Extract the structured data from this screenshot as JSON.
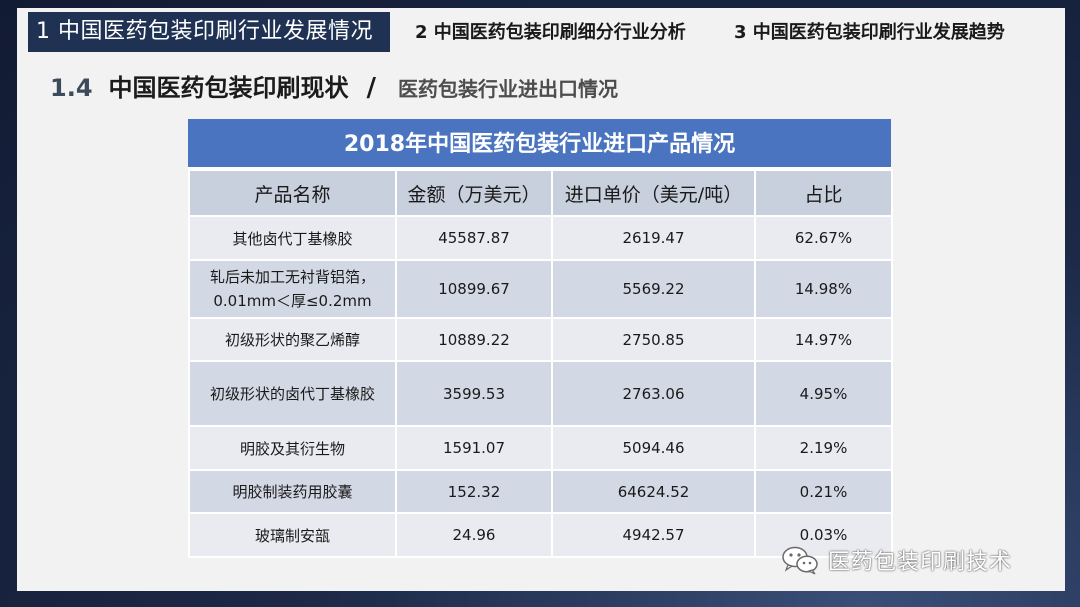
{
  "nav": {
    "tab1": "1 中国医药包装印刷行业发展情况",
    "tab2": "2 中国医药包装印刷细分行业分析",
    "tab3": "3 中国医药包装印刷行业发展趋势"
  },
  "section": {
    "number": "1.4",
    "title": "中国医药包装印刷现状",
    "separator": "/",
    "subtitle": "医药包装行业进出口情况"
  },
  "table": {
    "caption": "2018年中国医药包装行业进口产品情况",
    "headers": [
      "产品名称",
      "金额（万美元）",
      "进口单价（美元/吨）",
      "占比"
    ],
    "rows": [
      {
        "name": "其他卤代丁基橡胶",
        "amount": "45587.87",
        "price": "2619.47",
        "share": "62.67%"
      },
      {
        "name_line1": "轧后未加工无衬背铝箔，",
        "name_line2": "0.01mm＜厚≤0.2mm",
        "amount": "10899.67",
        "price": "5569.22",
        "share": "14.98%"
      },
      {
        "name": "初级形状的聚乙烯醇",
        "amount": "10889.22",
        "price": "2750.85",
        "share": "14.97%"
      },
      {
        "name": "初级形状的卤代丁基橡胶",
        "amount": "3599.53",
        "price": "2763.06",
        "share": "4.95%"
      },
      {
        "name": "明胶及其衍生物",
        "amount": "1591.07",
        "price": "5094.46",
        "share": "2.19%"
      },
      {
        "name": "明胶制装药用胶囊",
        "amount": "152.32",
        "price": "64624.52",
        "share": "0.21%"
      },
      {
        "name": "玻璃制安瓿",
        "amount": "24.96",
        "price": "4942.57",
        "share": "0.03%"
      }
    ]
  },
  "watermark": {
    "icon": "wechat-icon",
    "text": "医药包装印刷技术"
  },
  "colors": {
    "nav_active": "#1f3253",
    "caption": "#4a74c0",
    "header_row": "#c9d0dd",
    "row_light": "#e9ebf1",
    "row_dark": "#d2d8e4"
  }
}
